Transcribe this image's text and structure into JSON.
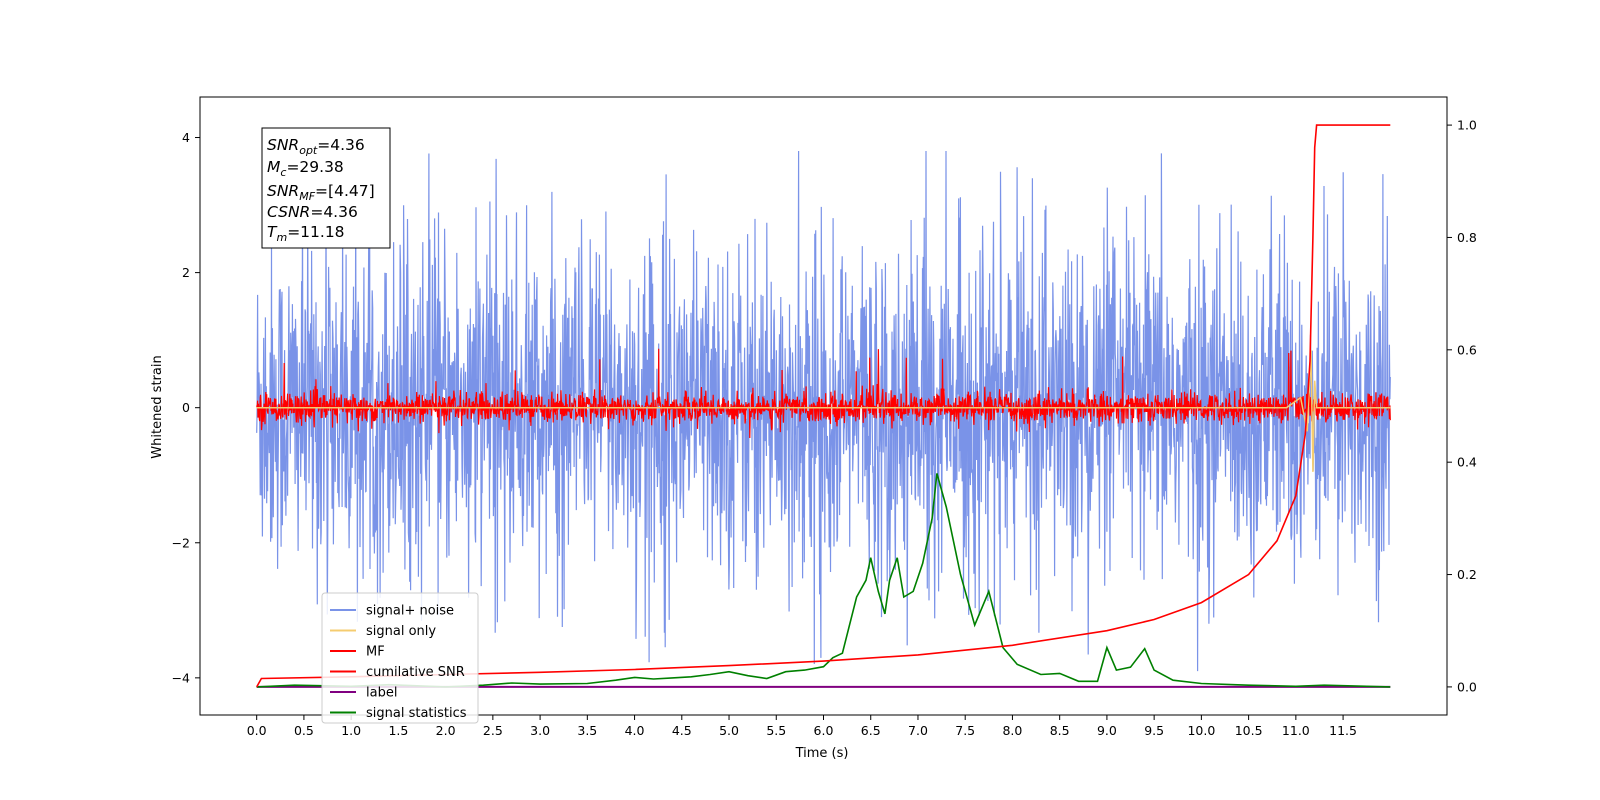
{
  "chart_data": {
    "type": "line",
    "xlabel": "Time (s)",
    "ylabel": "Whitened strain",
    "xlim": [
      -0.6,
      12.6
    ],
    "ylim": [
      -4.55,
      4.6
    ],
    "y2lim": [
      -0.05,
      1.05
    ],
    "grid": false,
    "legend_position": "lower-left",
    "x_ticks": [
      "0.0",
      "0.5",
      "1.0",
      "1.5",
      "2.0",
      "2.5",
      "3.0",
      "3.5",
      "4.0",
      "4.5",
      "5.0",
      "5.5",
      "6.0",
      "6.5",
      "7.0",
      "7.5",
      "8.0",
      "8.5",
      "9.0",
      "9.5",
      "10.0",
      "10.5",
      "11.0",
      "11.5"
    ],
    "y_ticks": [
      "−4",
      "−2",
      "0",
      "2",
      "4"
    ],
    "y2_ticks": [
      "0.0",
      "0.2",
      "0.4",
      "0.6",
      "0.8",
      "1.0"
    ],
    "info_box": {
      "snr_opt": {
        "base": "SNR",
        "sub": "opt",
        "value": "=4.36"
      },
      "mc": {
        "base": "M",
        "sub": "c",
        "value": "=29.38"
      },
      "snr_mf": {
        "base": "SNR",
        "sub": "MF",
        "value": "=[4.47]"
      },
      "csnr": {
        "base": "CSNR",
        "sub": "",
        "value": "=4.36"
      },
      "tm": {
        "base": "T",
        "sub": "m",
        "value": "=11.18"
      }
    },
    "series": [
      {
        "name": "signal+ noise",
        "color": "#7a93e8",
        "axis": "left",
        "description_only": "dense whitened noise, roughly within [-2.5, 2.5], occasional peaks near ±3.8",
        "amplitude_envelope": {
          "typical": 1.2,
          "peak": 3.8
        }
      },
      {
        "name": "signal only",
        "color": "#f5cc70",
        "axis": "left",
        "points": [
          [
            0.0,
            0.0
          ],
          [
            10.9,
            0.0
          ],
          [
            11.05,
            0.15
          ],
          [
            11.12,
            -0.35
          ],
          [
            11.16,
            0.85
          ],
          [
            11.18,
            -0.95
          ],
          [
            11.2,
            0.4
          ],
          [
            11.22,
            0.0
          ],
          [
            12.0,
            0.0
          ]
        ]
      },
      {
        "name": "MF",
        "color": "#ff0000",
        "axis": "left",
        "amplitude_envelope": {
          "typical": 0.2,
          "peak": 0.9
        }
      },
      {
        "name": "cumilative SNR",
        "color": "#ff0000",
        "axis": "right",
        "points": [
          [
            0.0,
            0.0
          ],
          [
            0.05,
            0.015
          ],
          [
            1.0,
            0.018
          ],
          [
            2.0,
            0.022
          ],
          [
            3.0,
            0.026
          ],
          [
            4.0,
            0.031
          ],
          [
            5.0,
            0.038
          ],
          [
            6.0,
            0.046
          ],
          [
            7.0,
            0.057
          ],
          [
            8.0,
            0.074
          ],
          [
            9.0,
            0.1
          ],
          [
            9.5,
            0.12
          ],
          [
            10.0,
            0.15
          ],
          [
            10.5,
            0.2
          ],
          [
            10.8,
            0.26
          ],
          [
            11.0,
            0.34
          ],
          [
            11.1,
            0.45
          ],
          [
            11.15,
            0.58
          ],
          [
            11.18,
            0.8
          ],
          [
            11.2,
            0.96
          ],
          [
            11.22,
            1.0
          ],
          [
            12.0,
            1.0
          ]
        ]
      },
      {
        "name": "label",
        "color": "#800080",
        "axis": "right",
        "points": [
          [
            0.0,
            0.0
          ],
          [
            12.0,
            0.0
          ]
        ]
      },
      {
        "name": "signal statistics",
        "color": "#008000",
        "axis": "right",
        "points": [
          [
            0.0,
            0.0
          ],
          [
            0.4,
            0.003
          ],
          [
            1.0,
            0.001
          ],
          [
            1.4,
            0.004
          ],
          [
            2.0,
            0.0
          ],
          [
            2.4,
            0.003
          ],
          [
            2.7,
            0.007
          ],
          [
            3.0,
            0.005
          ],
          [
            3.5,
            0.006
          ],
          [
            3.8,
            0.012
          ],
          [
            4.0,
            0.017
          ],
          [
            4.2,
            0.014
          ],
          [
            4.4,
            0.016
          ],
          [
            4.6,
            0.018
          ],
          [
            4.8,
            0.022
          ],
          [
            5.0,
            0.027
          ],
          [
            5.2,
            0.02
          ],
          [
            5.4,
            0.015
          ],
          [
            5.6,
            0.027
          ],
          [
            5.8,
            0.03
          ],
          [
            6.0,
            0.036
          ],
          [
            6.1,
            0.052
          ],
          [
            6.2,
            0.06
          ],
          [
            6.35,
            0.16
          ],
          [
            6.45,
            0.19
          ],
          [
            6.5,
            0.23
          ],
          [
            6.58,
            0.17
          ],
          [
            6.65,
            0.13
          ],
          [
            6.7,
            0.19
          ],
          [
            6.78,
            0.23
          ],
          [
            6.85,
            0.16
          ],
          [
            6.95,
            0.17
          ],
          [
            7.05,
            0.22
          ],
          [
            7.15,
            0.3
          ],
          [
            7.2,
            0.38
          ],
          [
            7.3,
            0.32
          ],
          [
            7.45,
            0.2
          ],
          [
            7.6,
            0.11
          ],
          [
            7.75,
            0.17
          ],
          [
            7.9,
            0.07
          ],
          [
            8.05,
            0.04
          ],
          [
            8.3,
            0.022
          ],
          [
            8.5,
            0.024
          ],
          [
            8.7,
            0.01
          ],
          [
            8.9,
            0.01
          ],
          [
            9.0,
            0.07
          ],
          [
            9.1,
            0.03
          ],
          [
            9.25,
            0.035
          ],
          [
            9.4,
            0.068
          ],
          [
            9.5,
            0.03
          ],
          [
            9.7,
            0.012
          ],
          [
            10.0,
            0.006
          ],
          [
            10.5,
            0.003
          ],
          [
            11.0,
            0.001
          ],
          [
            11.3,
            0.003
          ],
          [
            12.0,
            0.0
          ]
        ]
      }
    ]
  }
}
